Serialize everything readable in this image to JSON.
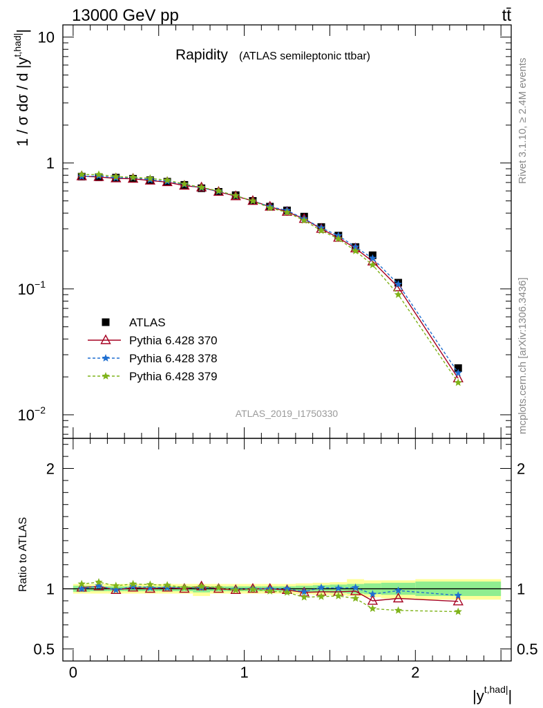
{
  "header": {
    "left": "13000 GeV pp",
    "right": "tt̄"
  },
  "side_labels": {
    "rivet": "Rivet 3.1.10, ≥ 2.4M events",
    "mcplots": "mcplots.cern.ch [arXiv:1306.3436]"
  },
  "main_title": "Rapidity",
  "subtitle": "(ATLAS semileptonic ttbar)",
  "watermark": "ATLAS_2019_I1750330",
  "colors": {
    "atlas": "#000000",
    "p370": "#a50021",
    "p378": "#1f6fd1",
    "p379": "#7fb31a",
    "band_inner": "#90ee90",
    "band_outer": "#ffff99"
  },
  "chart_data": [
    {
      "type": "scatter",
      "panel": "main",
      "ylabel": "1 / σ dσ / d |y^{t,had}|",
      "yscale": "log",
      "ylim": [
        0.0065,
        12.5
      ],
      "xlim": [
        -0.06,
        2.56
      ],
      "y_ticks": [
        {
          "v": 10,
          "label": "10"
        },
        {
          "v": 1,
          "label": "1"
        },
        {
          "v": 0.1,
          "label": "10",
          "sup": "−1"
        },
        {
          "v": 0.01,
          "label": "10",
          "sup": "−2"
        }
      ],
      "x": [
        0.05,
        0.15,
        0.25,
        0.35,
        0.45,
        0.55,
        0.65,
        0.75,
        0.85,
        0.95,
        1.05,
        1.15,
        1.25,
        1.35,
        1.45,
        1.55,
        1.65,
        1.75,
        1.9,
        2.25
      ],
      "series": [
        {
          "name": "ATLAS",
          "key": "atlas",
          "marker": "square",
          "values": [
            0.78,
            0.77,
            0.765,
            0.75,
            0.73,
            0.71,
            0.67,
            0.63,
            0.59,
            0.555,
            0.5,
            0.45,
            0.42,
            0.375,
            0.31,
            0.265,
            0.215,
            0.185,
            0.112,
            0.0235
          ]
        },
        {
          "name": "Pythia 6.428 370",
          "key": "p370",
          "marker": "triangle",
          "values": [
            0.785,
            0.775,
            0.755,
            0.75,
            0.725,
            0.705,
            0.66,
            0.64,
            0.59,
            0.545,
            0.5,
            0.45,
            0.41,
            0.36,
            0.3,
            0.255,
            0.21,
            0.165,
            0.103,
            0.0195
          ]
        },
        {
          "name": "Pythia 6.428 378",
          "key": "p378",
          "marker": "star",
          "values": [
            0.78,
            0.79,
            0.76,
            0.765,
            0.735,
            0.715,
            0.675,
            0.635,
            0.595,
            0.55,
            0.5,
            0.45,
            0.42,
            0.36,
            0.305,
            0.265,
            0.215,
            0.175,
            0.109,
            0.0215
          ]
        },
        {
          "name": "Pythia 6.428 379",
          "key": "p379",
          "marker": "star",
          "values": [
            0.81,
            0.81,
            0.78,
            0.77,
            0.755,
            0.73,
            0.68,
            0.64,
            0.6,
            0.55,
            0.5,
            0.44,
            0.405,
            0.35,
            0.29,
            0.25,
            0.2,
            0.155,
            0.09,
            0.018
          ]
        }
      ],
      "legend": "left-lower"
    },
    {
      "type": "line",
      "panel": "ratio",
      "ylabel": "Ratio to ATLAS",
      "xlabel": "|y^{t,had}|",
      "ylim": [
        0.4,
        2.25
      ],
      "xlim": [
        -0.06,
        2.56
      ],
      "y_ticks": [
        {
          "v": 2,
          "label": "2"
        },
        {
          "v": 1,
          "label": "1"
        },
        {
          "v": 0.5,
          "label": "0.5"
        }
      ],
      "x_ticks": [
        {
          "v": 0,
          "label": "0"
        },
        {
          "v": 1,
          "label": "1"
        },
        {
          "v": 2,
          "label": "2"
        }
      ],
      "band_edges": [
        0,
        0.1,
        0.2,
        0.3,
        0.4,
        0.5,
        0.6,
        0.7,
        0.8,
        0.9,
        1.0,
        1.1,
        1.2,
        1.3,
        1.4,
        1.5,
        1.6,
        1.7,
        1.8,
        2.0,
        2.5
      ],
      "band_inner": [
        [
          0.975,
          1.025
        ],
        [
          0.98,
          1.02
        ],
        [
          0.98,
          1.02
        ],
        [
          0.98,
          1.02
        ],
        [
          0.98,
          1.02
        ],
        [
          0.98,
          1.02
        ],
        [
          0.98,
          1.02
        ],
        [
          0.97,
          1.02
        ],
        [
          0.98,
          1.02
        ],
        [
          0.98,
          1.02
        ],
        [
          0.98,
          1.02
        ],
        [
          0.98,
          1.02
        ],
        [
          0.98,
          1.02
        ],
        [
          0.975,
          1.025
        ],
        [
          0.97,
          1.03
        ],
        [
          0.965,
          1.035
        ],
        [
          0.96,
          1.04
        ],
        [
          0.955,
          1.045
        ],
        [
          0.95,
          1.05
        ],
        [
          0.94,
          1.06
        ]
      ],
      "band_outer": [
        [
          0.96,
          1.04
        ],
        [
          0.96,
          1.04
        ],
        [
          0.96,
          1.04
        ],
        [
          0.96,
          1.04
        ],
        [
          0.96,
          1.04
        ],
        [
          0.96,
          1.04
        ],
        [
          0.96,
          1.04
        ],
        [
          0.94,
          1.04
        ],
        [
          0.96,
          1.04
        ],
        [
          0.96,
          1.04
        ],
        [
          0.96,
          1.04
        ],
        [
          0.96,
          1.04
        ],
        [
          0.96,
          1.04
        ],
        [
          0.955,
          1.045
        ],
        [
          0.95,
          1.05
        ],
        [
          0.945,
          1.055
        ],
        [
          0.94,
          1.08
        ],
        [
          0.93,
          1.07
        ],
        [
          0.92,
          1.07
        ],
        [
          0.91,
          1.08
        ]
      ],
      "x": [
        0.05,
        0.15,
        0.25,
        0.35,
        0.45,
        0.55,
        0.65,
        0.75,
        0.85,
        0.95,
        1.05,
        1.15,
        1.25,
        1.35,
        1.45,
        1.55,
        1.65,
        1.75,
        1.9,
        2.25
      ],
      "series": [
        {
          "name": "Pythia 6.428 370",
          "key": "p370",
          "marker": "triangle",
          "values": [
            1.01,
            1.02,
            0.99,
            1.01,
            1.0,
            1.01,
            1.0,
            1.02,
            1.0,
            0.99,
            1.0,
            1.0,
            0.99,
            0.97,
            0.975,
            0.975,
            0.98,
            0.9,
            0.92,
            0.895
          ]
        },
        {
          "name": "Pythia 6.428 378",
          "key": "p378",
          "marker": "star",
          "values": [
            1.0,
            1.025,
            0.99,
            1.02,
            1.01,
            1.01,
            1.01,
            1.01,
            1.01,
            0.995,
            1.0,
            1.0,
            1.0,
            0.975,
            1.01,
            1.005,
            1.01,
            0.955,
            0.985,
            0.945
          ]
        },
        {
          "name": "Pythia 6.428 379",
          "key": "p379",
          "marker": "star",
          "values": [
            1.04,
            1.055,
            1.025,
            1.04,
            1.035,
            1.03,
            1.01,
            1.02,
            1.01,
            0.99,
            0.995,
            0.98,
            0.97,
            0.93,
            0.935,
            0.94,
            0.92,
            0.835,
            0.82,
            0.81
          ]
        }
      ]
    }
  ]
}
